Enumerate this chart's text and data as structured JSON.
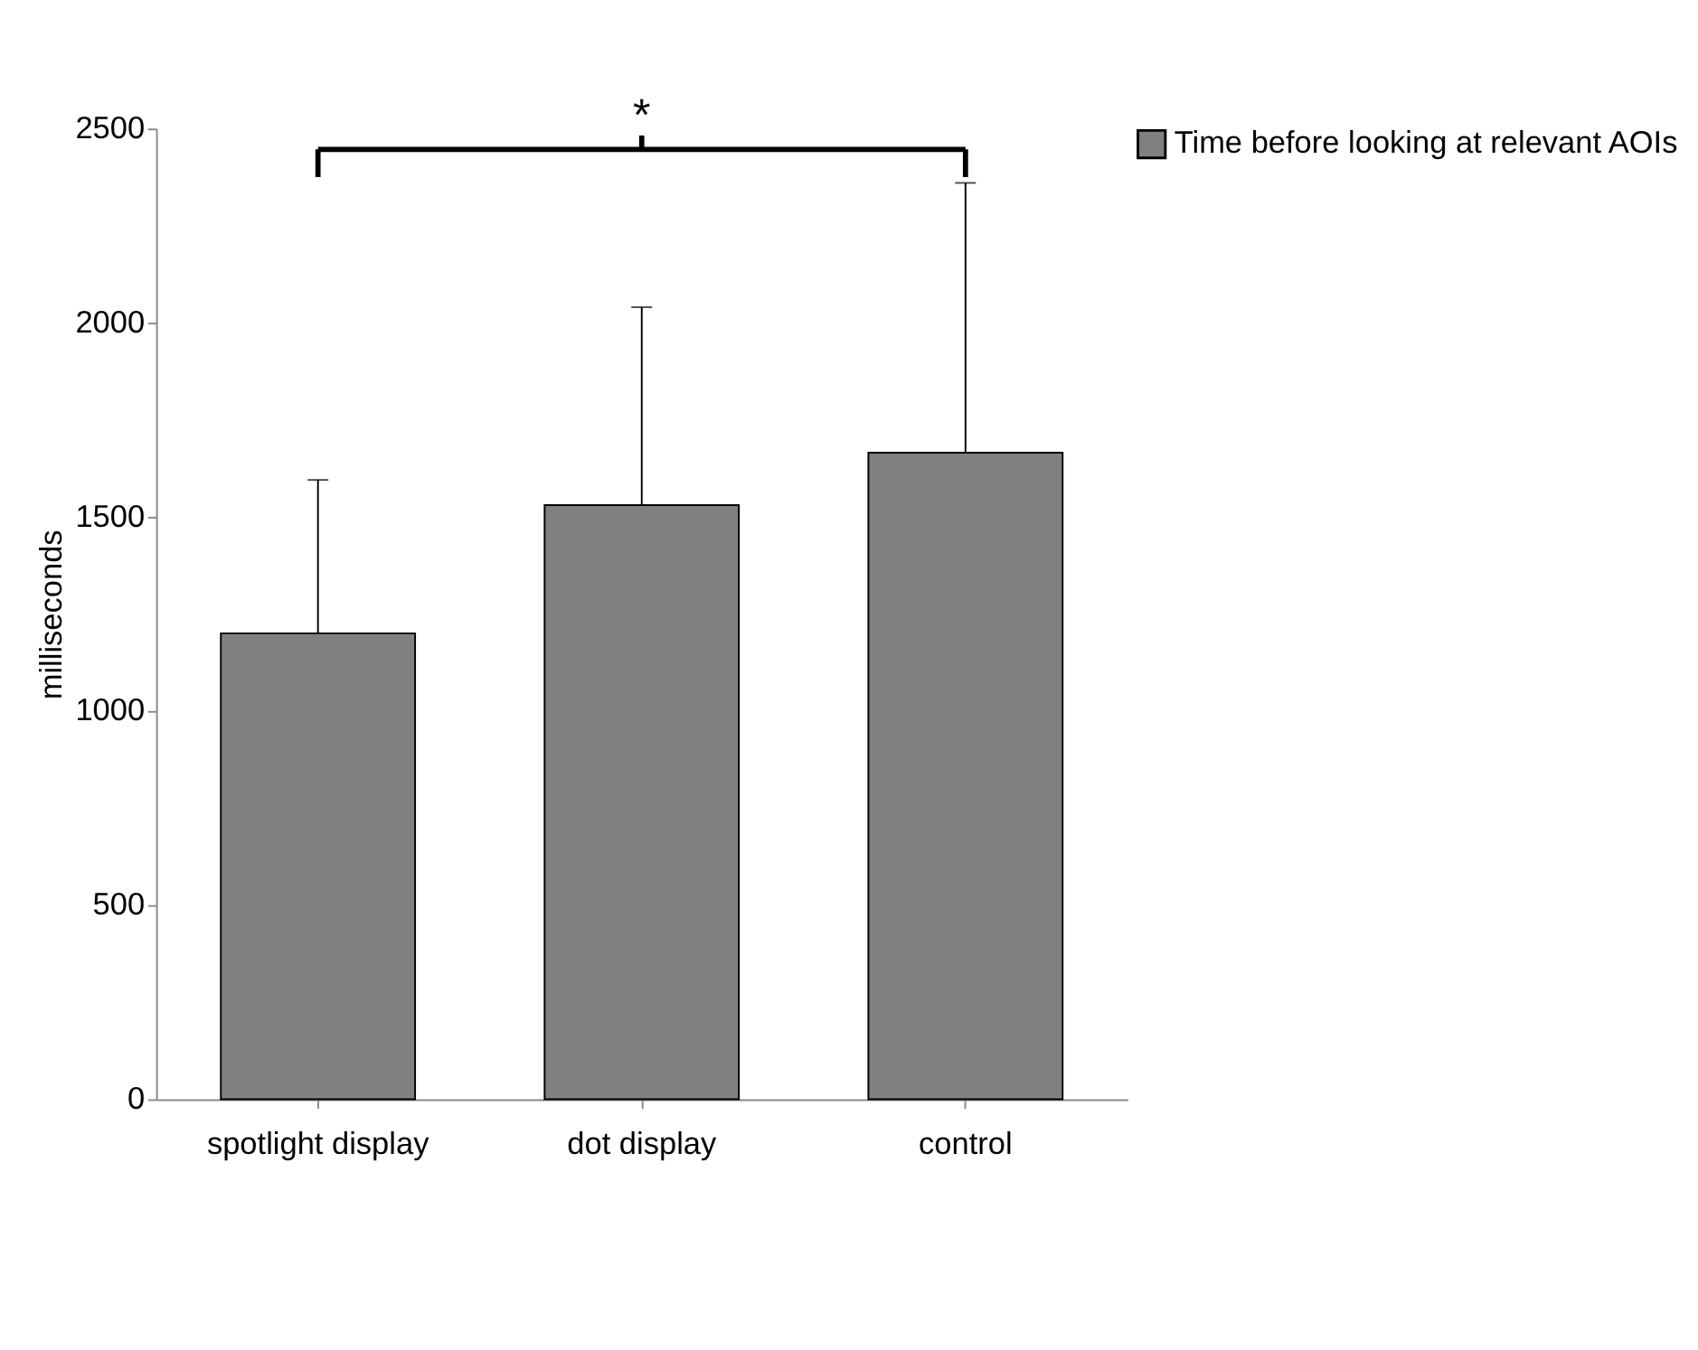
{
  "chart_data": {
    "type": "bar",
    "ylabel": "milliseconds",
    "categories": [
      "spotlight display",
      "dot display",
      "control"
    ],
    "series": [
      {
        "name": "Time before looking at relevant AOIs",
        "color": "#808080",
        "values": [
          1200,
          1530,
          1665
        ],
        "errors": [
          [
            1200,
            1595
          ],
          [
            1530,
            2040
          ],
          [
            1665,
            2360
          ]
        ]
      }
    ],
    "ylim": [
      0,
      2500
    ],
    "yticks": [
      0,
      500,
      1000,
      1500,
      2000,
      2500
    ],
    "grid": false,
    "legend": "top right",
    "annotations": [
      "*"
    ]
  }
}
